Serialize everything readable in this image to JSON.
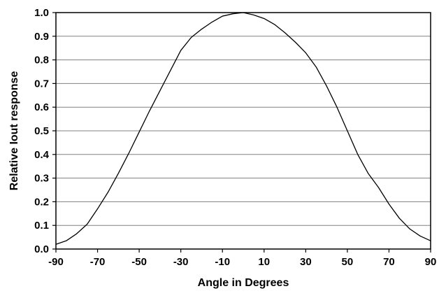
{
  "chart_data": {
    "type": "line",
    "title": "",
    "xlabel": "Angle in Degrees",
    "ylabel": "Relative Iout response",
    "xlim": [
      -90,
      90
    ],
    "ylim": [
      0.0,
      1.0
    ],
    "x_ticks": [
      "-90",
      "-70",
      "-50",
      "-30",
      "-10",
      "10",
      "30",
      "50",
      "70",
      "90"
    ],
    "y_ticks": [
      "0.0",
      "0.1",
      "0.2",
      "0.3",
      "0.4",
      "0.5",
      "0.6",
      "0.7",
      "0.8",
      "0.9",
      "1.0"
    ],
    "grid": "horizontal",
    "legend": "none",
    "line_color": "#000000",
    "series": [
      {
        "x": [
          -90,
          -85,
          -80,
          -75,
          -70,
          -65,
          -60,
          -55,
          -50,
          -45,
          -40,
          -35,
          -30,
          -25,
          -20,
          -15,
          -10,
          -5,
          0,
          5,
          10,
          15,
          20,
          25,
          30,
          35,
          40,
          45,
          50,
          55,
          60,
          65,
          70,
          75,
          80,
          85,
          90
        ],
        "y": [
          0.02,
          0.035,
          0.065,
          0.105,
          0.17,
          0.24,
          0.32,
          0.405,
          0.495,
          0.585,
          0.67,
          0.755,
          0.84,
          0.895,
          0.93,
          0.96,
          0.985,
          0.995,
          1.0,
          0.99,
          0.975,
          0.95,
          0.915,
          0.875,
          0.83,
          0.77,
          0.69,
          0.6,
          0.5,
          0.4,
          0.32,
          0.26,
          0.19,
          0.13,
          0.085,
          0.055,
          0.035
        ]
      }
    ]
  }
}
